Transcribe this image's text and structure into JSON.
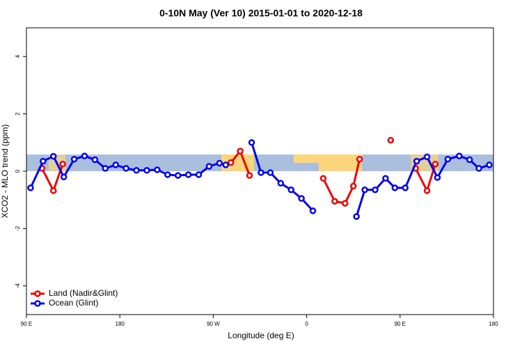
{
  "chart_data": {
    "type": "line",
    "title": "0-10N May (Ver 10)   2015-01-01 to 2020-12-18",
    "xlabel": "Longitude (deg E)",
    "ylabel": "XCO2 - MLO trend (ppm)",
    "xlim": [
      90,
      540
    ],
    "ylim": [
      -5,
      5
    ],
    "xticks": [
      {
        "value": 90,
        "label": "90 E"
      },
      180,
      {
        "value": 270,
        "label": "90 W"
      },
      {
        "value": 360,
        "label": "0"
      },
      {
        "value": 450,
        "label": "90 E"
      },
      {
        "value": 540,
        "label": "180"
      }
    ],
    "yticks": [
      -4,
      -2,
      0,
      2,
      4
    ],
    "legend": "bottom-left",
    "series": [
      {
        "name": "Land (Nadir&Glint)",
        "color": "#ee0000",
        "x": [
          105,
          116,
          125,
          null,
          287,
          296,
          305,
          null,
          376,
          387,
          397,
          405,
          411,
          null,
          441,
          null,
          465,
          476,
          484
        ],
        "values": [
          0.1,
          -0.68,
          0.25,
          null,
          0.3,
          0.7,
          -0.15,
          null,
          -0.25,
          -1.05,
          -1.12,
          -0.52,
          0.42,
          null,
          1.08,
          null,
          0.1,
          -0.68,
          0.25
        ]
      },
      {
        "name": "Ocean (Glint)",
        "color": "#0000ee",
        "x": [
          94,
          106,
          116,
          126,
          136,
          146,
          156,
          166,
          176,
          186,
          196,
          206,
          216,
          226,
          236,
          246,
          256,
          266,
          276,
          282,
          null,
          307,
          316,
          325,
          335,
          345,
          355,
          366,
          null,
          408,
          416,
          426,
          436,
          445,
          455,
          466,
          476,
          486,
          496,
          507,
          517,
          526,
          536
        ],
        "values": [
          -0.58,
          0.35,
          0.52,
          -0.2,
          0.42,
          0.53,
          0.4,
          0.1,
          0.22,
          0.1,
          0.03,
          0.03,
          0.05,
          -0.12,
          -0.15,
          -0.12,
          -0.12,
          0.17,
          0.28,
          0.22,
          null,
          1.0,
          -0.05,
          -0.05,
          -0.42,
          -0.65,
          -0.95,
          -1.38,
          null,
          -1.58,
          -0.65,
          -0.65,
          -0.25,
          -0.58,
          -0.58,
          0.35,
          0.5,
          -0.22,
          0.42,
          0.53,
          0.4,
          0.1,
          0.22
        ]
      }
    ]
  }
}
